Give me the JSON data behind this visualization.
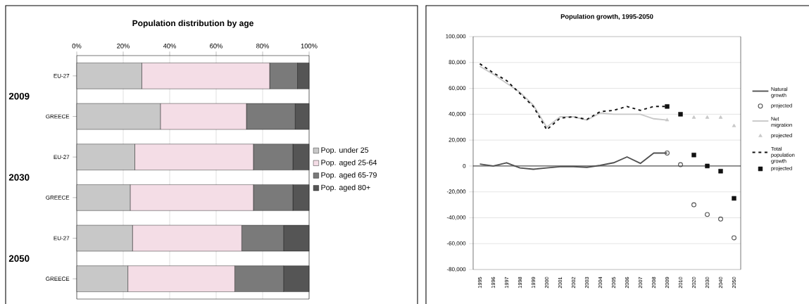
{
  "chart_data": [
    {
      "type": "bar",
      "orientation": "horizontal",
      "stacked": true,
      "title": "Population distribution by age",
      "categories": [
        "EU-27",
        "GREECE",
        "EU-27",
        "GREECE",
        "EU-27",
        "GREECE"
      ],
      "series": [
        {
          "name": "Pop. under 25",
          "color": "#c8c8c8",
          "values": [
            28,
            36,
            25,
            23,
            24,
            22
          ]
        },
        {
          "name": "Pop. aged 25-64",
          "color": "#f4dde6",
          "values": [
            55,
            37,
            51,
            53,
            47,
            46
          ]
        },
        {
          "name": "Pop. aged 65-79",
          "color": "#7a7a7a",
          "values": [
            12,
            21,
            17,
            17,
            18,
            21
          ]
        },
        {
          "name": "Pop. aged 80+",
          "color": "#555555",
          "values": [
            5,
            6,
            7,
            7,
            11,
            11
          ]
        }
      ],
      "xlim": [
        0,
        100
      ],
      "xticks": [
        {
          "value": 0,
          "label": "0%"
        },
        {
          "value": 20,
          "label": "20%"
        },
        {
          "value": 40,
          "label": "40%"
        },
        {
          "value": 60,
          "label": "60%"
        },
        {
          "value": 80,
          "label": "80%"
        },
        {
          "value": 100,
          "label": "100%"
        }
      ],
      "grid": "x",
      "legend": "right",
      "annotations": [
        "2009",
        "2030",
        "2050"
      ]
    },
    {
      "type": "line",
      "title": "Population growth, 1995-2050",
      "categories": [
        "1995",
        "1996",
        "1997",
        "1998",
        "1999",
        "2000",
        "2001",
        "2002",
        "2003",
        "2004",
        "2005",
        "2006",
        "2007",
        "2008",
        "2009",
        "2010",
        "2020",
        "2030",
        "2040",
        "2050"
      ],
      "series": [
        {
          "name": "Natural growth",
          "color": "#505050",
          "marker": "none",
          "line_style": "solid",
          "values": [
            1500,
            0,
            2500,
            -1500,
            -2500,
            -1500,
            -500,
            -500,
            -1000,
            500,
            2500,
            7000,
            2000,
            10000,
            10000,
            null,
            null,
            null,
            null,
            null
          ]
        },
        {
          "name": "projected",
          "type": "scatter",
          "color": "#505050",
          "marker": "circle",
          "values": [
            null,
            null,
            null,
            null,
            null,
            null,
            null,
            null,
            null,
            null,
            null,
            null,
            null,
            null,
            10000,
            1000,
            -30000,
            -37500,
            -41000,
            -55500
          ]
        },
        {
          "name": "Net migration",
          "color": "#c8c8c8",
          "marker": "none",
          "line_style": "solid",
          "values": [
            77000,
            71000,
            64000,
            57000,
            47000,
            30000,
            38000,
            38000,
            35500,
            41000,
            40000,
            40000,
            40000,
            36500,
            35500,
            null,
            null,
            null,
            null,
            null
          ]
        },
        {
          "name": "projected",
          "type": "scatter",
          "color": "#c8c8c8",
          "marker": "triangle",
          "values": [
            null,
            null,
            null,
            null,
            null,
            null,
            null,
            null,
            null,
            null,
            null,
            null,
            null,
            null,
            35500,
            null,
            37500,
            37500,
            37500,
            31000
          ]
        },
        {
          "name": "Total population growth",
          "color": "#111111",
          "marker": "none",
          "line_style": "dashed",
          "values": [
            79000,
            72000,
            66000,
            56000,
            46000,
            28000,
            37000,
            38000,
            36000,
            42000,
            43000,
            46000,
            43000,
            46000,
            46000,
            null,
            null,
            null,
            null,
            null
          ]
        },
        {
          "name": "projected",
          "type": "scatter",
          "color": "#111111",
          "marker": "square",
          "values": [
            null,
            null,
            null,
            null,
            null,
            null,
            null,
            null,
            null,
            null,
            null,
            null,
            null,
            null,
            46000,
            40000,
            8500,
            0,
            -4000,
            -25000
          ]
        }
      ],
      "ylim": [
        -80000,
        100000
      ],
      "yticks": [
        {
          "value": -80000,
          "label": "-80,000"
        },
        {
          "value": -60000,
          "label": "-60,000"
        },
        {
          "value": -40000,
          "label": "-40,000"
        },
        {
          "value": -20000,
          "label": "-20,000"
        },
        0,
        {
          "value": 20000,
          "label": "20,000"
        },
        {
          "value": 40000,
          "label": "40,000"
        },
        {
          "value": 60000,
          "label": "60,000"
        },
        {
          "value": 80000,
          "label": "80,000"
        },
        {
          "value": 100000,
          "label": "100,000"
        }
      ],
      "grid": "y",
      "legend": "right"
    }
  ]
}
